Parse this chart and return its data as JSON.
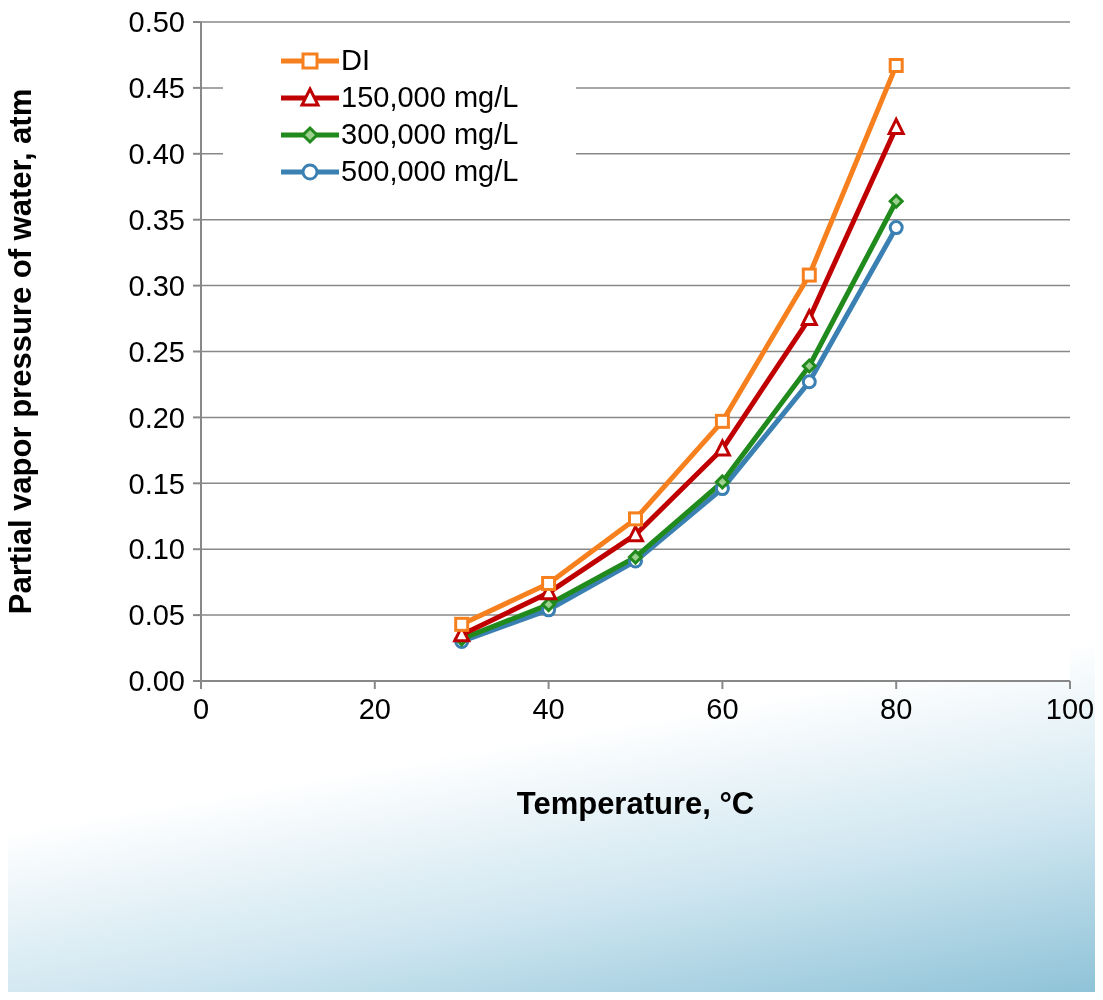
{
  "chart_data": {
    "type": "line",
    "xlabel": "Temperature, °C",
    "ylabel": "Partial vapor pressure of water, atm",
    "x": [
      30,
      40,
      50,
      60,
      70,
      80
    ],
    "series": [
      {
        "name": "DI",
        "color": "#f7801e",
        "marker": "square",
        "values": [
          0.043,
          0.074,
          0.123,
          0.197,
          0.308,
          0.467
        ]
      },
      {
        "name": "150,000 mg/L",
        "color": "#c00000",
        "marker": "triangle",
        "values": [
          0.035,
          0.067,
          0.111,
          0.176,
          0.275,
          0.42
        ]
      },
      {
        "name": "300,000 mg/L",
        "color": "#218a1c",
        "marker": "diamond",
        "values": [
          0.032,
          0.058,
          0.094,
          0.151,
          0.239,
          0.364
        ]
      },
      {
        "name": "500,000 mg/L",
        "color": "#3a80b2",
        "marker": "circle",
        "values": [
          0.03,
          0.054,
          0.091,
          0.146,
          0.227,
          0.344
        ]
      }
    ],
    "xlim": [
      0,
      100
    ],
    "xticks": [
      0,
      20,
      40,
      60,
      80,
      100
    ],
    "ylim": [
      0,
      0.5
    ],
    "yticks": [
      {
        "value": 0,
        "label": "0.00"
      },
      {
        "value": 0.05,
        "label": "0.05"
      },
      {
        "value": 0.1,
        "label": "0.10"
      },
      {
        "value": 0.15,
        "label": "0.15"
      },
      {
        "value": 0.2,
        "label": "0.20"
      },
      {
        "value": 0.25,
        "label": "0.25"
      },
      {
        "value": 0.3,
        "label": "0.30"
      },
      {
        "value": 0.35,
        "label": "0.35"
      },
      {
        "value": 0.4,
        "label": "0.40"
      },
      {
        "value": 0.45,
        "label": "0.45"
      },
      {
        "value": 0.5,
        "label": "0.50"
      }
    ],
    "grid": "y",
    "legend": "top left",
    "line_style": "solid"
  }
}
